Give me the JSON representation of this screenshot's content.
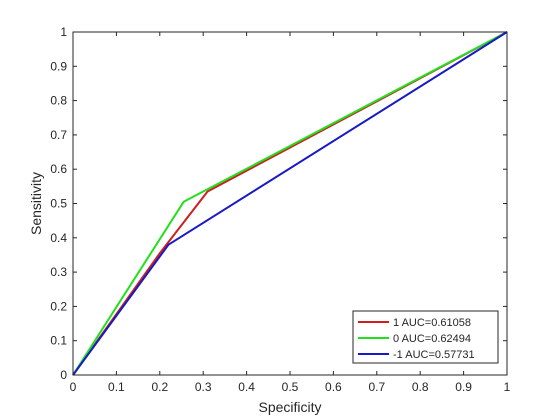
{
  "chart_data": {
    "type": "line",
    "title": "",
    "xlabel": "Specificity",
    "ylabel": "Sensitivity",
    "xlim": [
      0,
      1
    ],
    "ylim": [
      0,
      1
    ],
    "xticks": [
      "0",
      "0.1",
      "0.2",
      "0.3",
      "0.4",
      "0.5",
      "0.6",
      "0.7",
      "0.8",
      "0.9",
      "1"
    ],
    "yticks": [
      "0",
      "0.1",
      "0.2",
      "0.3",
      "0.4",
      "0.5",
      "0.6",
      "0.7",
      "0.8",
      "0.9",
      "1"
    ],
    "grid": false,
    "legend_position": "bottom-right",
    "series": [
      {
        "name": "1 AUC=0.61058",
        "color": "#cc1f1f",
        "x": [
          0,
          0.2,
          0.31,
          1
        ],
        "y": [
          0,
          0.355,
          0.535,
          1
        ]
      },
      {
        "name": "0 AUC=0.62494",
        "color": "#22e01e",
        "x": [
          0,
          0.255,
          1
        ],
        "y": [
          0,
          0.505,
          1
        ]
      },
      {
        "name": "-1 AUC=0.57731",
        "color": "#1a1ac4",
        "x": [
          0,
          0.22,
          1
        ],
        "y": [
          0,
          0.38,
          1
        ]
      }
    ]
  }
}
